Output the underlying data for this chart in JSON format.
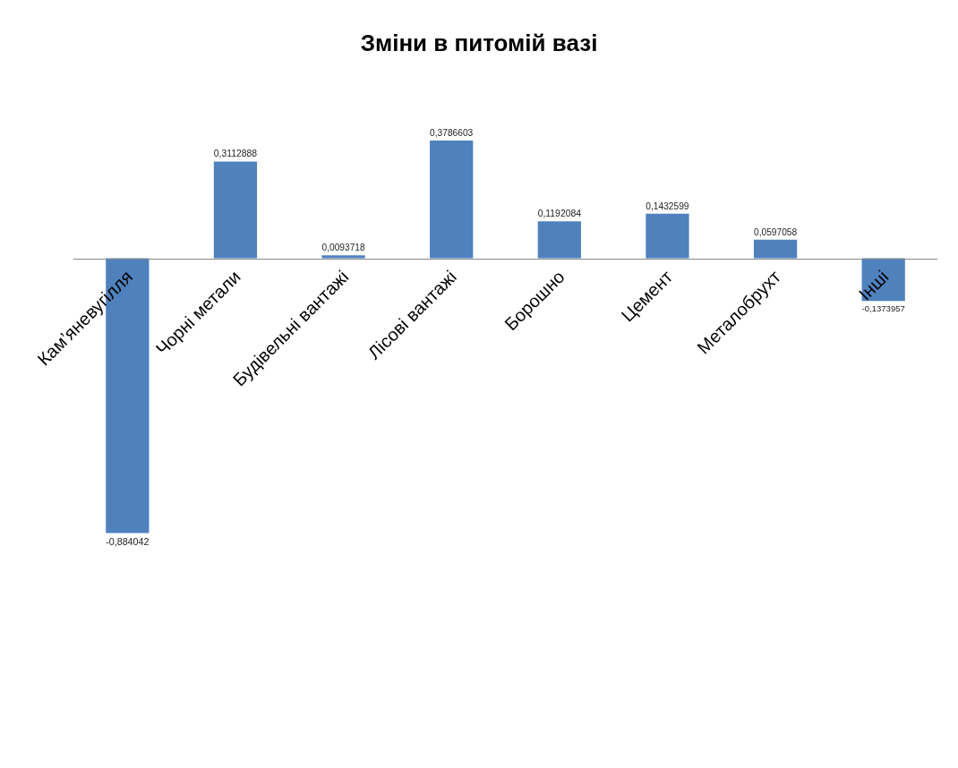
{
  "chart_data": {
    "type": "bar",
    "title": "Зміни в питомій вазі",
    "categories": [
      "Кам’яневугілля",
      "Чорні метали",
      "Будівельні вантажі",
      "Лісові вантажі",
      "Борошно",
      "Цемент",
      "Металобрухт",
      "Інші"
    ],
    "values": [
      -0.884042,
      0.3112888,
      0.0093718,
      0.3786603,
      0.1192084,
      0.1432599,
      0.0597058,
      -0.1373957
    ],
    "value_labels": [
      "-0,884042",
      "0,3112888",
      "0,0093718",
      "0,3786603",
      "0,1192084",
      "0,1432599",
      "0,0597058",
      "-0,1373957"
    ],
    "color": "#4f81bd",
    "grid": false,
    "tick_labels": "x"
  }
}
